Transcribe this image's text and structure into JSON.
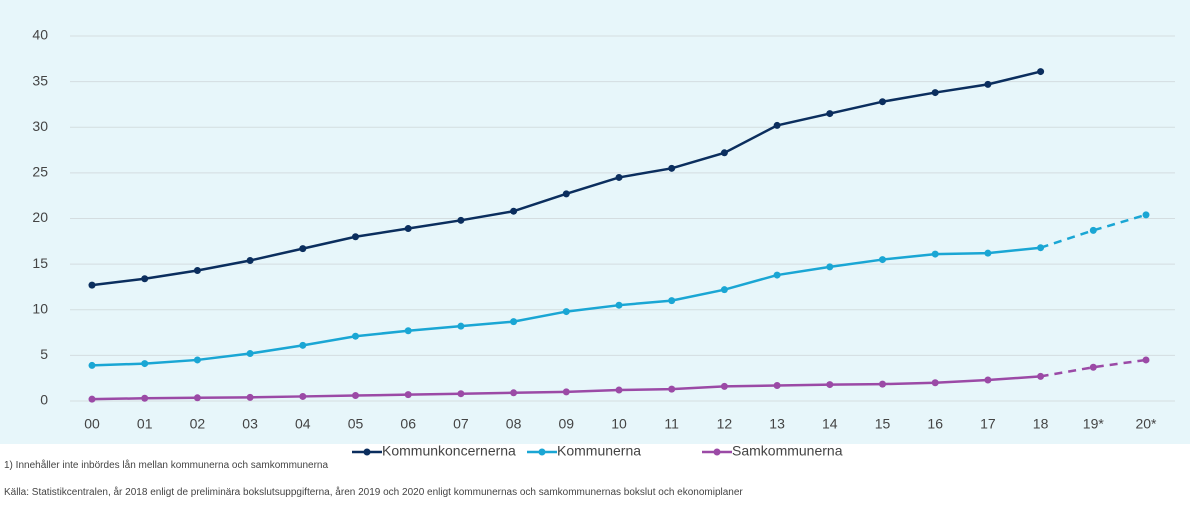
{
  "chart_data": {
    "type": "line",
    "categories": [
      "00",
      "01",
      "02",
      "03",
      "04",
      "05",
      "06",
      "07",
      "08",
      "09",
      "10",
      "11",
      "12",
      "13",
      "14",
      "15",
      "16",
      "17",
      "18",
      "19*",
      "20*"
    ],
    "dashed_from_category": "18",
    "series": [
      {
        "name": "Kommunkoncernerna",
        "color": "#0b2e5e",
        "values": [
          12.7,
          13.4,
          14.3,
          15.4,
          16.7,
          18.0,
          18.9,
          19.8,
          20.8,
          22.7,
          24.5,
          25.5,
          27.2,
          30.2,
          31.5,
          32.8,
          33.8,
          34.7,
          36.1,
          null,
          null
        ]
      },
      {
        "name": "Kommunerna",
        "color": "#1aa6d4",
        "values": [
          3.9,
          4.1,
          4.5,
          5.2,
          6.1,
          7.1,
          7.7,
          8.2,
          8.7,
          9.8,
          10.5,
          11.0,
          12.2,
          13.8,
          14.7,
          15.5,
          16.1,
          16.2,
          16.8,
          18.7,
          20.4
        ]
      },
      {
        "name": "Samkommunerna",
        "color": "#9b4aa6",
        "values": [
          0.2,
          0.3,
          0.35,
          0.4,
          0.5,
          0.6,
          0.7,
          0.8,
          0.9,
          1.0,
          1.2,
          1.3,
          1.6,
          1.7,
          1.8,
          1.85,
          2.0,
          2.3,
          2.7,
          3.7,
          4.5
        ]
      }
    ],
    "ylim": [
      0,
      40
    ],
    "yticks": [
      0,
      5,
      10,
      15,
      20,
      25,
      30,
      35,
      40
    ],
    "grid": true,
    "footnote": "1) Innehåller inte inbördes lån mellan kommunerna och samkommunerna",
    "source": "Källa: Statistikcentralen, år 2018 enligt de preliminära bokslutsuppgifterna, åren 2019 och 2020 enligt kommunernas och samkommunernas bokslut och ekonomiplaner"
  }
}
